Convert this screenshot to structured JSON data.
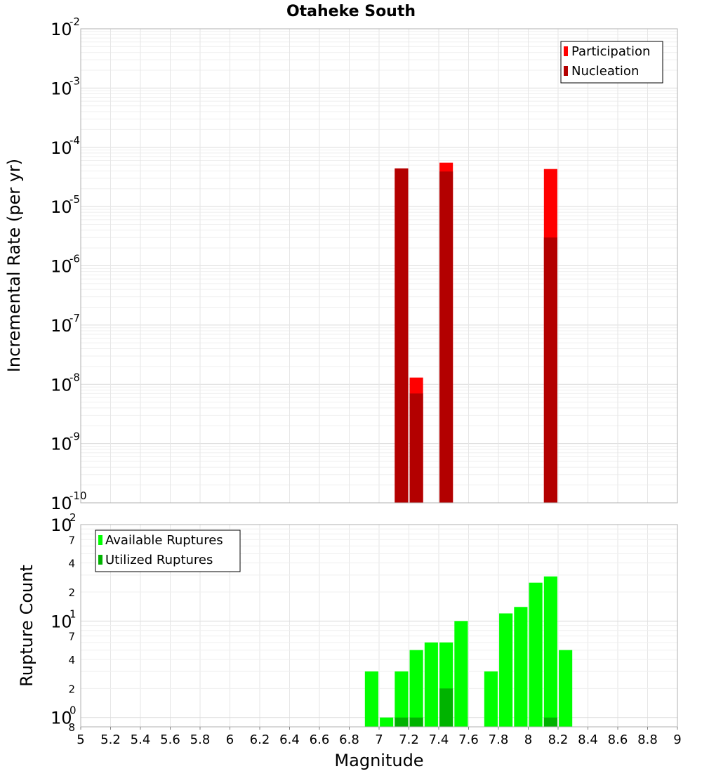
{
  "chart_data": {
    "title": "Otaheke South",
    "xlabel": "Magnitude",
    "xlim": [
      5,
      9
    ],
    "xticks": [
      "5",
      "5.2",
      "5.4",
      "5.6",
      "5.8",
      "6",
      "6.2",
      "6.4",
      "6.6",
      "6.8",
      "7",
      "7.2",
      "7.4",
      "7.6",
      "7.8",
      "8",
      "8.2",
      "8.4",
      "8.6",
      "8.8",
      "9"
    ],
    "grid": true,
    "panels": [
      {
        "type": "bar",
        "ylabel": "Incremental Rate (per yr)",
        "yscale": "log",
        "ylim": [
          1e-10,
          0.01
        ],
        "ytick_exponents": [
          "-10",
          "-9",
          "-8",
          "-7",
          "-6",
          "-5",
          "-4",
          "-3",
          "-2"
        ],
        "ytick_base": "10",
        "legend": {
          "placement": "top-right",
          "entries": [
            "Participation",
            "Nucleation"
          ]
        },
        "series": [
          {
            "name": "Participation",
            "color": "#ff0000",
            "x": [
              7.15,
              7.25,
              7.45,
              8.15
            ],
            "values": [
              4.4e-05,
              1.3e-08,
              5.5e-05,
              4.3e-05
            ]
          },
          {
            "name": "Nucleation",
            "color": "#b30000",
            "x": [
              7.15,
              7.25,
              7.45,
              8.15
            ],
            "values": [
              4.4e-05,
              7e-09,
              3.9e-05,
              3e-06
            ]
          }
        ]
      },
      {
        "type": "bar",
        "ylabel": "Rupture Count",
        "yscale": "log",
        "ylim": [
          0.8,
          100
        ],
        "major_ticks": [
          {
            "base": "10",
            "exp": "0",
            "value": 1
          },
          {
            "base": "10",
            "exp": "1",
            "value": 10
          },
          {
            "base": "10",
            "exp": "2",
            "value": 100
          }
        ],
        "minor_ticks": [
          {
            "label": "8",
            "value": 0.8
          },
          {
            "label": "2",
            "value": 2
          },
          {
            "label": "4",
            "value": 4
          },
          {
            "label": "7",
            "value": 7
          },
          {
            "label": "2",
            "value": 20
          },
          {
            "label": "4",
            "value": 40
          },
          {
            "label": "7",
            "value": 70
          }
        ],
        "legend": {
          "placement": "top-left",
          "entries": [
            "Available Ruptures",
            "Utilized Ruptures"
          ]
        },
        "series": [
          {
            "name": "Available Ruptures",
            "color": "#00ff00",
            "x": [
              6.95,
              7.05,
              7.15,
              7.25,
              7.35,
              7.45,
              7.55,
              7.75,
              7.85,
              7.95,
              8.05,
              8.15,
              8.25
            ],
            "values": [
              3,
              1,
              3,
              5,
              6,
              6,
              10,
              3,
              12,
              14,
              25,
              29,
              5
            ]
          },
          {
            "name": "Utilized Ruptures",
            "color": "#00b300",
            "x": [
              7.15,
              7.25,
              7.45,
              8.15
            ],
            "values": [
              1,
              1,
              2,
              1
            ]
          }
        ]
      }
    ]
  }
}
